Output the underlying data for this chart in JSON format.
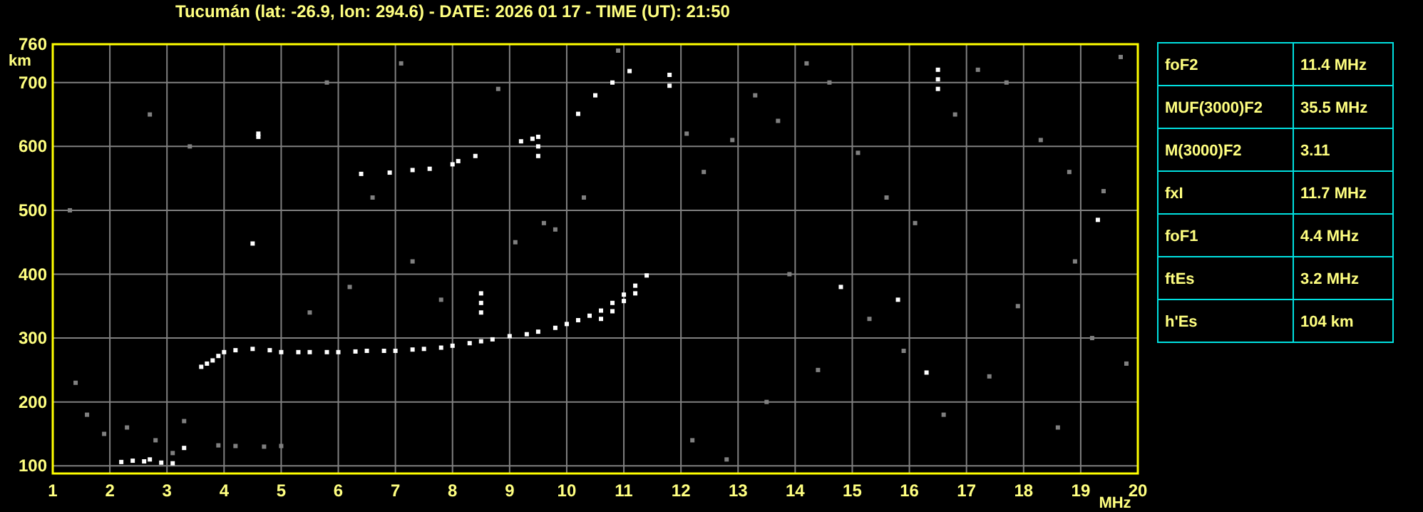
{
  "chart_data": [
    {
      "type": "scatter",
      "title": "Tucumán (lat: -26.9, lon: 294.6) - DATE: 2026 01 17 - TIME (UT): 21:50",
      "xlabel": "MHz",
      "ylabel": "km",
      "xlim": [
        1,
        20
      ],
      "ylim": [
        88,
        760
      ],
      "xticks": [
        1,
        2,
        3,
        4,
        5,
        6,
        7,
        8,
        9,
        10,
        11,
        12,
        13,
        14,
        15,
        16,
        17,
        18,
        19,
        20
      ],
      "yticks": [
        100,
        200,
        300,
        400,
        500,
        600,
        700,
        760
      ],
      "grid": true,
      "marker": "square",
      "series": [
        {
          "color": "#ffffff",
          "x": [
            3.6,
            3.7,
            3.8,
            3.9,
            4.0,
            4.2,
            4.5,
            4.8,
            5.0,
            5.3,
            5.5,
            5.8,
            6.0,
            6.3,
            6.5,
            6.8,
            7.0,
            7.3,
            7.5,
            7.8,
            8.0,
            8.3,
            8.5,
            8.7,
            9.0,
            9.3,
            9.5,
            9.8,
            10.0,
            10.2,
            10.4,
            10.6,
            10.8,
            11.0,
            11.2,
            11.4,
            10.6,
            10.8,
            11.0,
            11.2
          ],
          "values": [
            255,
            260,
            265,
            272,
            278,
            281,
            283,
            281,
            278,
            278,
            278,
            278,
            278,
            279,
            280,
            280,
            280,
            282,
            283,
            285,
            288,
            292,
            295,
            298,
            303,
            306,
            310,
            316,
            322,
            328,
            335,
            343,
            355,
            368,
            382,
            398,
            330,
            342,
            358,
            370
          ]
        },
        {
          "color": "#ffffff",
          "x": [
            6.4,
            6.9,
            7.3,
            7.6,
            8.0,
            8.1,
            8.4,
            9.2,
            9.4,
            10.2,
            10.5,
            10.8,
            11.1
          ],
          "values": [
            557,
            559,
            563,
            565,
            572,
            577,
            585,
            608,
            612,
            651,
            680,
            700,
            718
          ]
        },
        {
          "color": "#ffffff",
          "x": [
            2.2,
            2.4,
            2.6,
            2.7,
            2.9,
            3.1,
            3.3,
            4.5,
            4.6,
            4.6,
            8.5,
            8.5,
            8.5,
            9.5,
            9.5,
            9.5,
            11.8,
            11.8,
            16.5,
            16.5,
            16.5,
            14.8,
            15.8,
            16.3,
            19.3
          ],
          "values": [
            106,
            108,
            107,
            110,
            105,
            104,
            128,
            448,
            615,
            620,
            340,
            355,
            370,
            585,
            600,
            615,
            695,
            712,
            690,
            705,
            720,
            380,
            360,
            246,
            485
          ]
        },
        {
          "color": "#808080",
          "x": [
            3.9,
            4.2,
            4.7,
            5.0,
            1.6,
            1.9,
            2.3,
            2.8,
            3.1,
            3.3,
            1.4,
            5.5,
            6.2,
            7.3,
            7.8,
            9.1,
            9.8,
            10.3,
            12.4,
            12.9,
            13.3,
            13.7,
            14.2,
            14.6,
            15.1,
            15.6,
            16.1,
            16.8,
            17.2,
            17.7,
            18.3,
            18.8,
            19.4,
            19.7,
            12.2,
            12.8,
            13.5,
            14.4,
            15.3,
            16.6,
            17.4,
            18.6,
            19.2,
            1.3,
            2.7,
            3.4,
            5.8,
            6.6,
            7.1,
            8.8,
            9.6,
            10.9,
            12.1,
            13.9,
            15.9,
            17.9,
            18.9,
            19.8
          ],
          "values": [
            132,
            131,
            130,
            131,
            180,
            150,
            160,
            140,
            120,
            170,
            230,
            340,
            380,
            420,
            360,
            450,
            470,
            520,
            560,
            610,
            680,
            640,
            730,
            700,
            590,
            520,
            480,
            650,
            720,
            700,
            610,
            560,
            530,
            740,
            140,
            110,
            200,
            250,
            330,
            180,
            240,
            160,
            300,
            500,
            650,
            600,
            700,
            520,
            730,
            690,
            480,
            750,
            620,
            400,
            280,
            350,
            420,
            260
          ]
        }
      ]
    },
    {
      "type": "other",
      "annotations": [
        "foF2",
        "11.4 MHz",
        "MUF(3000)F2",
        "35.5 MHz",
        "M(3000)F2",
        "3.11",
        "fxI",
        "11.7 MHz",
        "foF1",
        "4.4 MHz",
        "ftEs",
        "3.2 MHz",
        "h'Es",
        "104 km"
      ]
    }
  ]
}
